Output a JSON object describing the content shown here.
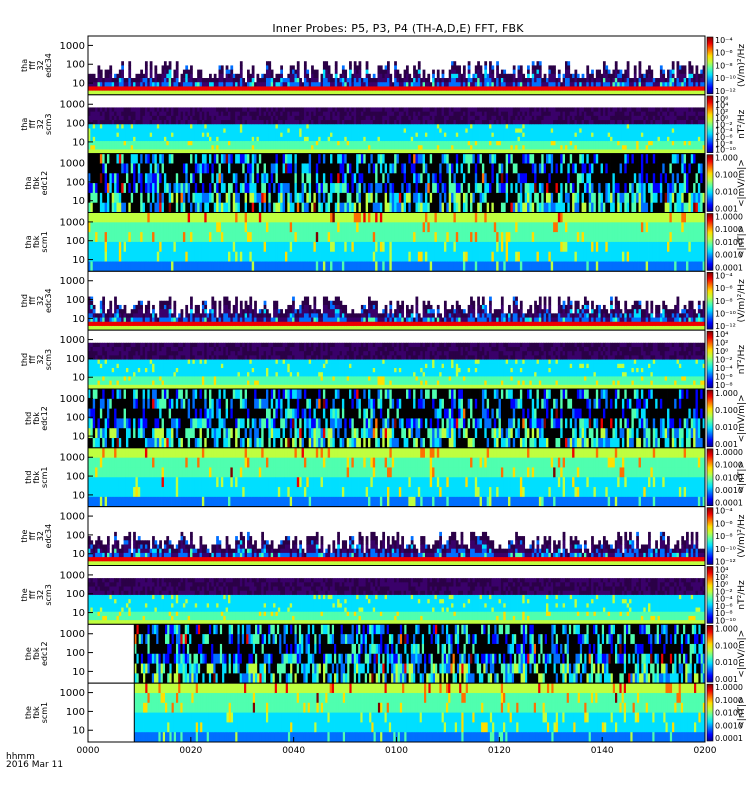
{
  "title": "Inner Probes: P5, P3, P4 (TH-A,D,E) FFT, FBK",
  "colors": {
    "frame": "#000000",
    "background": "#ffffff"
  },
  "footer": {
    "line1": "hhmm",
    "line2": "2016 Mar 11"
  },
  "chart_data": {
    "type": "heatmap",
    "x_ticks": [
      "0000",
      "0020",
      "0040",
      "0100",
      "0120",
      "0140",
      "0200"
    ],
    "panels": [
      {
        "probe": "tha",
        "label": [
          "tha",
          "fff",
          "32",
          "edc34"
        ],
        "kind": "fff_e",
        "y_ticks": [
          "1000",
          "100",
          "10"
        ],
        "cbar_ticks": [
          "10⁻⁴",
          "10⁻⁶",
          "10⁻⁸",
          "10⁻¹⁰",
          "10⁻¹²"
        ],
        "cbar_label": "(V/m)²/Hz",
        "data_start": 0.0
      },
      {
        "probe": "tha",
        "label": [
          "tha",
          "fff",
          "32",
          "scm3"
        ],
        "kind": "fff_b",
        "y_ticks": [
          "1000",
          "100",
          "10"
        ],
        "cbar_ticks": [
          "10⁶",
          "10⁴",
          "10²",
          "10⁰",
          "10⁻²",
          "10⁻⁴",
          "10⁻⁶",
          "10⁻⁸",
          "10⁻¹⁰"
        ],
        "cbar_label": "nT²/Hz",
        "data_start": 0.0
      },
      {
        "probe": "tha",
        "label": [
          "tha",
          "fbk",
          "edc12"
        ],
        "kind": "fbk_e",
        "y_ticks": [
          "1000",
          "100",
          "10"
        ],
        "cbar_ticks": [
          "1.000",
          "0.100",
          "0.010",
          "0.001"
        ],
        "cbar_label": "<|mV/m|>",
        "data_start": 0.0
      },
      {
        "probe": "tha",
        "label": [
          "tha",
          "fbk",
          "scm1"
        ],
        "kind": "fbk_b",
        "y_ticks": [
          "1000",
          "100",
          "10"
        ],
        "cbar_ticks": [
          "1.0000",
          "0.1000",
          "0.0100",
          "0.0010",
          "0.0001"
        ],
        "cbar_label": "<|nT|>",
        "data_start": 0.0
      },
      {
        "probe": "thd",
        "label": [
          "thd",
          "fff",
          "32",
          "edc34"
        ],
        "kind": "fff_e",
        "y_ticks": [
          "1000",
          "100",
          "10"
        ],
        "cbar_ticks": [
          "10⁻⁴",
          "10⁻⁶",
          "10⁻⁸",
          "10⁻¹⁰",
          "10⁻¹²"
        ],
        "cbar_label": "(V/m)²/Hz",
        "data_start": 0.0
      },
      {
        "probe": "thd",
        "label": [
          "thd",
          "fff",
          "32",
          "scm3"
        ],
        "kind": "fff_b",
        "y_ticks": [
          "1000",
          "100",
          "10"
        ],
        "cbar_ticks": [
          "10⁴",
          "10²",
          "10⁰",
          "10⁻²",
          "10⁻⁴",
          "10⁻⁶",
          "10⁻⁸"
        ],
        "cbar_label": "nT²/Hz",
        "data_start": 0.0
      },
      {
        "probe": "thd",
        "label": [
          "thd",
          "fbk",
          "edc12"
        ],
        "kind": "fbk_e",
        "y_ticks": [
          "1000",
          "100",
          "10"
        ],
        "cbar_ticks": [
          "1.000",
          "0.100",
          "0.010",
          "0.001"
        ],
        "cbar_label": "<|mV/m|>",
        "data_start": 0.0
      },
      {
        "probe": "thd",
        "label": [
          "thd",
          "fbk",
          "scm1"
        ],
        "kind": "fbk_b",
        "y_ticks": [
          "1000",
          "100",
          "10"
        ],
        "cbar_ticks": [
          "1.0000",
          "0.1000",
          "0.0100",
          "0.0010",
          "0.0001"
        ],
        "cbar_label": "<|nT|>",
        "data_start": 0.0
      },
      {
        "probe": "the",
        "label": [
          "the",
          "fff",
          "32",
          "edc34"
        ],
        "kind": "fff_e",
        "y_ticks": [
          "1000",
          "100",
          "10"
        ],
        "cbar_ticks": [
          "10⁻⁴",
          "10⁻⁶",
          "10⁻⁸",
          "10⁻¹⁰",
          "10⁻¹²"
        ],
        "cbar_label": "(V/m)²/Hz",
        "data_start": 0.0
      },
      {
        "probe": "the",
        "label": [
          "the",
          "fff",
          "32",
          "scm3"
        ],
        "kind": "fff_b",
        "y_ticks": [
          "1000",
          "100",
          "10"
        ],
        "cbar_ticks": [
          "10⁴",
          "10²",
          "10⁰",
          "10⁻²",
          "10⁻⁴",
          "10⁻⁶",
          "10⁻⁸",
          "10⁻¹⁰"
        ],
        "cbar_label": "nT²/Hz",
        "data_start": 0.0
      },
      {
        "probe": "the",
        "label": [
          "the",
          "fbk",
          "edc12"
        ],
        "kind": "fbk_e",
        "y_ticks": [
          "1000",
          "100",
          "10"
        ],
        "cbar_ticks": [
          "1.000",
          "0.100",
          "0.010",
          "0.001"
        ],
        "cbar_label": "<|mV/m|>",
        "data_start": 0.075
      },
      {
        "probe": "the",
        "label": [
          "the",
          "fbk",
          "scm1"
        ],
        "kind": "fbk_b",
        "y_ticks": [
          "1000",
          "100",
          "10"
        ],
        "cbar_ticks": [
          "1.0000",
          "0.1000",
          "0.0100",
          "0.0010",
          "0.0001"
        ],
        "cbar_label": "<|nT|>",
        "data_start": 0.075
      }
    ]
  }
}
